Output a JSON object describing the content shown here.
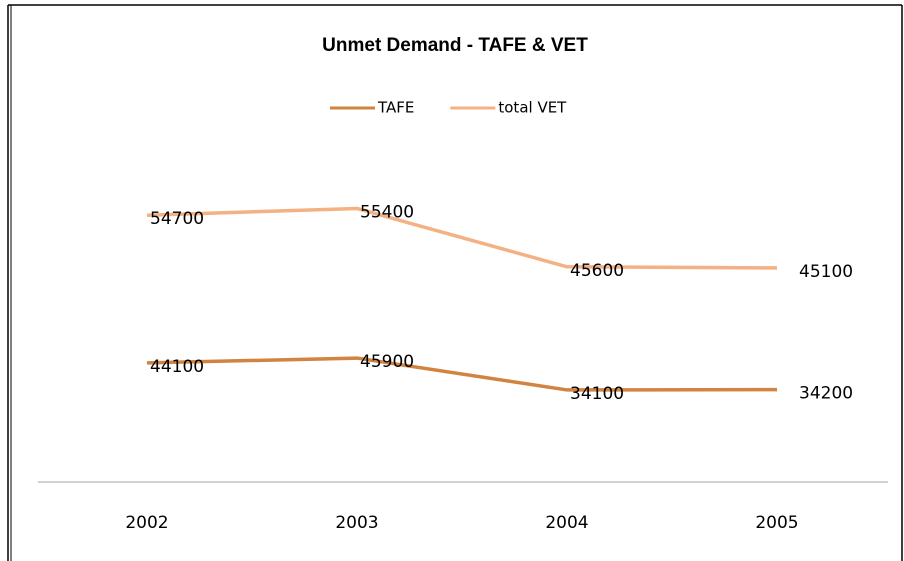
{
  "chart_data": {
    "type": "line",
    "stacked": true,
    "title": "Unmet Demand - TAFE & VET",
    "categories": [
      "2002",
      "2003",
      "2004",
      "2005"
    ],
    "series": [
      {
        "name": "TAFE",
        "color": "#d0843f",
        "values": [
          44100,
          45900,
          34100,
          34200
        ]
      },
      {
        "name": "total VET",
        "color": "#f4b183",
        "values": [
          54700,
          55400,
          45600,
          45100
        ]
      }
    ],
    "ylim": [
      0,
      120000
    ],
    "legend": "top"
  }
}
